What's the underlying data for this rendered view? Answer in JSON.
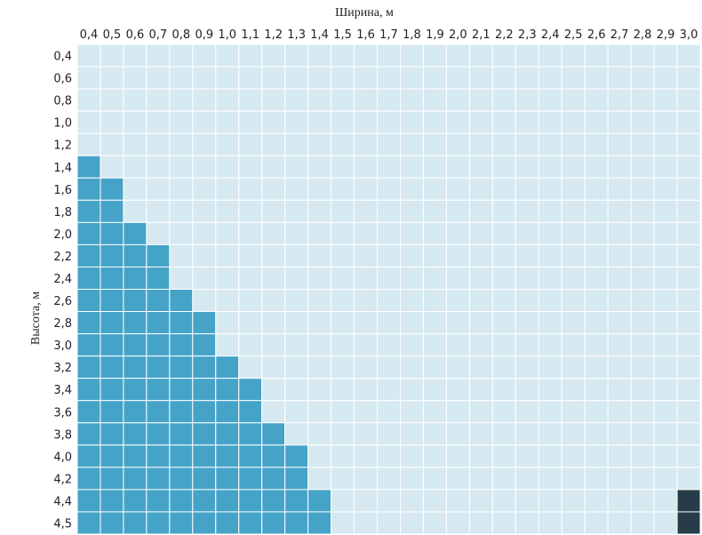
{
  "chart_data": {
    "type": "heatmap",
    "title": "",
    "xlabel": "Ширина, м",
    "ylabel": "Высота, м",
    "x_ticks": [
      "0,4",
      "0,5",
      "0,6",
      "0,7",
      "0,8",
      "0,9",
      "1,0",
      "1,1",
      "1,2",
      "1,3",
      "1,4",
      "1,5",
      "1,6",
      "1,7",
      "1,8",
      "1,9",
      "2,0",
      "2,1",
      "2,2",
      "2,3",
      "2,4",
      "2,5",
      "2,6",
      "2,7",
      "2,8",
      "2,9",
      "3,0"
    ],
    "y_ticks": [
      "0,4",
      "0,6",
      "0,8",
      "1,0",
      "1,2",
      "1,4",
      "1,6",
      "1,8",
      "2,0",
      "2,2",
      "2,4",
      "2,6",
      "2,8",
      "3,0",
      "3,2",
      "3,4",
      "3,6",
      "3,8",
      "4,0",
      "4,2",
      "4,4",
      "4,5"
    ],
    "filled_columns_per_row": [
      0,
      0,
      0,
      0,
      0,
      1,
      2,
      2,
      3,
      4,
      4,
      5,
      6,
      6,
      7,
      8,
      8,
      9,
      10,
      10,
      11,
      11
    ],
    "special_cells": [
      {
        "row": "4,4",
        "col": "3,0"
      },
      {
        "row": "4,5",
        "col": "3,0"
      }
    ],
    "colors": {
      "empty": "#d6e9f1",
      "filled": "#45a3c8",
      "special": "#263c48",
      "grid": "#ffffff"
    },
    "grid": true
  }
}
